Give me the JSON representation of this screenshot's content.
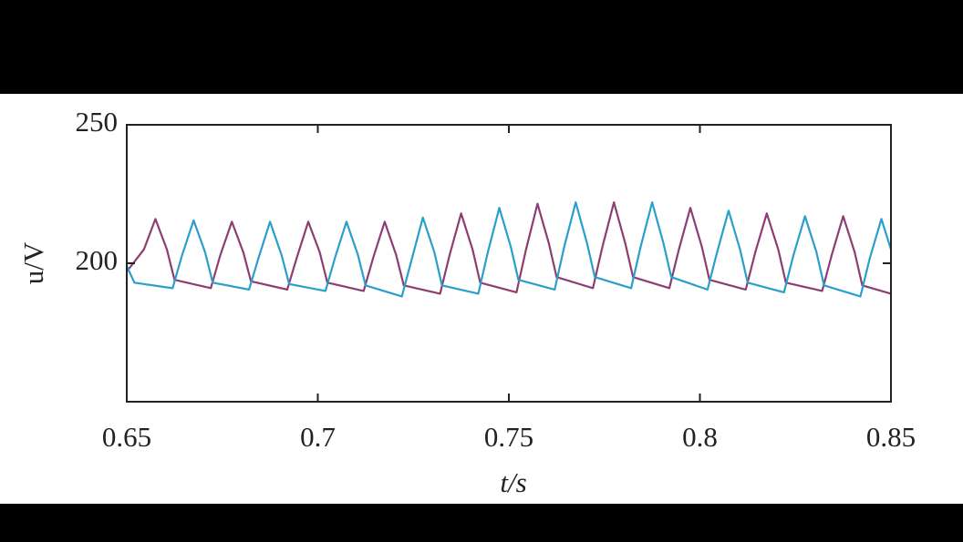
{
  "chart_data": {
    "type": "line",
    "xlabel": "t/s",
    "ylabel": "u/V",
    "xlim": [
      0.65,
      0.85
    ],
    "xticks": [
      0.65,
      0.7,
      0.75,
      0.8,
      0.85
    ],
    "ylim": [
      150,
      250
    ],
    "yticks": [
      200,
      250
    ],
    "series": [
      {
        "color": "#8e3d72",
        "x": [
          0.65,
          0.6545,
          0.6575,
          0.6605,
          0.6625,
          0.672,
          0.6745,
          0.6775,
          0.6805,
          0.6825,
          0.692,
          0.6945,
          0.6975,
          0.7005,
          0.7025,
          0.712,
          0.7145,
          0.7175,
          0.7205,
          0.7225,
          0.732,
          0.7345,
          0.7375,
          0.7405,
          0.7425,
          0.752,
          0.7545,
          0.7575,
          0.7605,
          0.7625,
          0.772,
          0.7745,
          0.7775,
          0.7805,
          0.7825,
          0.792,
          0.7945,
          0.7975,
          0.8005,
          0.8025,
          0.812,
          0.8145,
          0.8175,
          0.8205,
          0.8225,
          0.832,
          0.8345,
          0.8375,
          0.8405,
          0.8425,
          0.85
        ],
        "values": [
          197,
          205,
          216,
          205,
          194,
          191,
          203,
          215,
          204,
          193.5,
          190.5,
          202,
          215,
          204,
          193,
          190,
          202,
          215,
          203,
          192,
          189,
          203,
          218,
          205,
          193,
          189.5,
          205,
          221.5,
          207,
          195,
          191,
          206,
          222,
          207,
          195,
          191,
          205,
          220,
          206,
          194,
          190.5,
          204,
          218,
          205,
          193,
          190,
          203,
          217,
          204,
          192,
          189
        ]
      },
      {
        "color": "#2a9fcb",
        "x": [
          0.65,
          0.652,
          0.662,
          0.6645,
          0.6675,
          0.6705,
          0.6725,
          0.682,
          0.6845,
          0.6875,
          0.6905,
          0.6925,
          0.702,
          0.7045,
          0.7075,
          0.7105,
          0.7125,
          0.722,
          0.7245,
          0.7275,
          0.7305,
          0.7325,
          0.742,
          0.7445,
          0.7475,
          0.7505,
          0.7525,
          0.762,
          0.7645,
          0.7675,
          0.7705,
          0.7725,
          0.782,
          0.7845,
          0.7875,
          0.7905,
          0.7925,
          0.802,
          0.8045,
          0.8075,
          0.8105,
          0.8125,
          0.822,
          0.8245,
          0.8275,
          0.8305,
          0.8325,
          0.842,
          0.8445,
          0.8475,
          0.85
        ],
        "values": [
          199,
          193,
          191,
          203,
          215.5,
          204,
          193,
          190.5,
          202,
          215,
          203,
          192.5,
          190,
          202,
          215,
          203,
          192,
          188,
          201,
          216.5,
          204,
          192,
          189,
          204,
          220,
          206,
          194,
          190.5,
          206,
          222,
          207,
          195,
          191,
          206,
          222,
          207,
          195,
          190.5,
          204,
          219,
          205,
          193,
          189.5,
          203,
          217,
          204,
          192,
          188,
          202,
          216,
          205
        ]
      }
    ]
  }
}
